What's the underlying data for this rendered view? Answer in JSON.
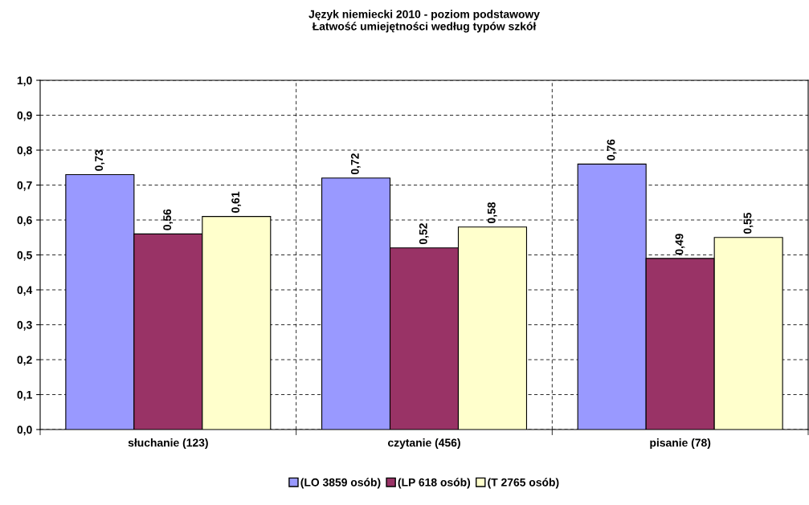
{
  "chart_data": {
    "type": "bar",
    "title": "Język niemiecki 2010 - poziom podstawowy\nŁatwość umiejętności według typów szkół",
    "categories": [
      "słuchanie (123)",
      "czytanie (456)",
      "pisanie (78)"
    ],
    "series": [
      {
        "name": "(LO 3859 osób)",
        "color": "#9999ff",
        "values": [
          0.73,
          0.72,
          0.76
        ],
        "value_labels": [
          "0,73",
          "0,72",
          "0,76"
        ]
      },
      {
        "name": "(LP 618 osób)",
        "color": "#993366",
        "values": [
          0.56,
          0.52,
          0.49
        ],
        "value_labels": [
          "0,56",
          "0,52",
          "0,49"
        ]
      },
      {
        "name": "(T 2765 osób)",
        "color": "#ffffcc",
        "values": [
          0.61,
          0.58,
          0.55
        ],
        "value_labels": [
          "0,61",
          "0,58",
          "0,55"
        ]
      }
    ],
    "ylim": [
      0,
      1.0
    ],
    "yticks": [
      {
        "value": 0,
        "label": "0,0"
      },
      {
        "value": 0.1,
        "label": "0,1"
      },
      {
        "value": 0.2,
        "label": "0,2"
      },
      {
        "value": 0.3,
        "label": "0,3"
      },
      {
        "value": 0.4,
        "label": "0,4"
      },
      {
        "value": 0.5,
        "label": "0,5"
      },
      {
        "value": 0.6,
        "label": "0,6"
      },
      {
        "value": 0.7,
        "label": "0,7"
      },
      {
        "value": 0.8,
        "label": "0,8"
      },
      {
        "value": 0.9,
        "label": "0,9"
      },
      {
        "value": 1.0,
        "label": "1,0"
      }
    ],
    "grid": true,
    "legend": "bottom"
  }
}
